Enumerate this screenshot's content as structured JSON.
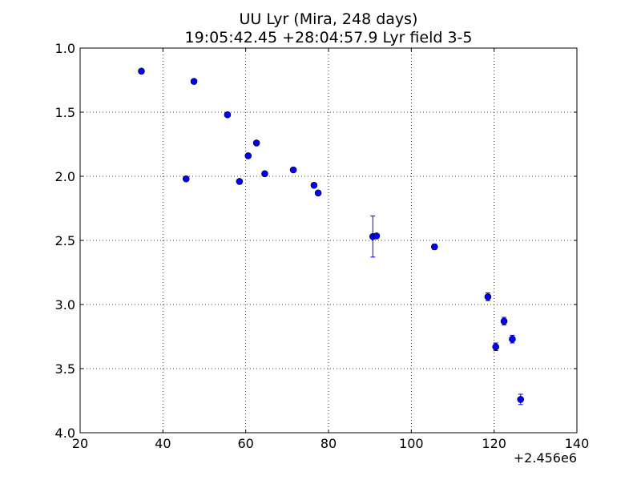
{
  "chart_data": {
    "type": "scatter",
    "title": "UU Lyr (Mira, 248 days)",
    "subtitle": "19:05:42.45 +28:04:57.9 Lyr field 3-5",
    "xlabel": "",
    "ylabel": "",
    "x_offset_label": "+2.456e6",
    "xlim": [
      20,
      140
    ],
    "ylim": [
      4.0,
      1.0
    ],
    "y_inverted": true,
    "x_ticks": [
      20,
      40,
      60,
      80,
      100,
      120,
      140
    ],
    "y_ticks": [
      1.0,
      1.5,
      2.0,
      2.5,
      3.0,
      3.5,
      4.0
    ],
    "x_tick_labels": [
      "20",
      "40",
      "60",
      "80",
      "100",
      "120",
      "140"
    ],
    "y_tick_labels": [
      "1.0",
      "1.5",
      "2.0",
      "2.5",
      "3.0",
      "3.5",
      "4.0"
    ],
    "grid": true,
    "marker_color": "#0000ff",
    "errorbar_color": "#0000ff",
    "series": [
      {
        "points": [
          {
            "x": 34.8,
            "y": 1.18,
            "err": 0.01
          },
          {
            "x": 45.6,
            "y": 2.02,
            "err": 0.01
          },
          {
            "x": 47.5,
            "y": 1.26,
            "err": 0.01
          },
          {
            "x": 55.6,
            "y": 1.52,
            "err": 0.01
          },
          {
            "x": 58.5,
            "y": 2.04,
            "err": 0.01
          },
          {
            "x": 60.6,
            "y": 1.84,
            "err": 0.01
          },
          {
            "x": 62.6,
            "y": 1.74,
            "err": 0.01
          },
          {
            "x": 64.6,
            "y": 1.98,
            "err": 0.01
          },
          {
            "x": 71.5,
            "y": 1.95,
            "err": 0.01
          },
          {
            "x": 76.5,
            "y": 2.07,
            "err": 0.01
          },
          {
            "x": 77.5,
            "y": 2.13,
            "err": 0.01
          },
          {
            "x": 90.7,
            "y": 2.47,
            "err": 0.16
          },
          {
            "x": 91.6,
            "y": 2.465,
            "err": 0.01
          },
          {
            "x": 105.6,
            "y": 2.55,
            "err": 0.02
          },
          {
            "x": 118.5,
            "y": 2.94,
            "err": 0.03
          },
          {
            "x": 120.4,
            "y": 3.33,
            "err": 0.03
          },
          {
            "x": 122.4,
            "y": 3.13,
            "err": 0.03
          },
          {
            "x": 124.4,
            "y": 3.27,
            "err": 0.03
          },
          {
            "x": 126.4,
            "y": 3.74,
            "err": 0.04
          }
        ]
      }
    ]
  }
}
